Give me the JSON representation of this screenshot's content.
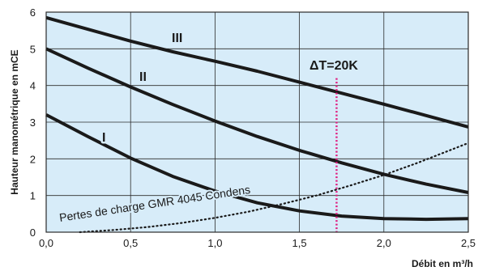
{
  "chart_data": {
    "type": "line",
    "ylabel": "Hauteur manométrique en mCE",
    "xlabel": "Débit en m³/h",
    "xlim": [
      0,
      2.5
    ],
    "ylim": [
      0,
      6
    ],
    "x_ticks": [
      "0,0",
      "0,5",
      "1,0",
      "1,5",
      "2,0",
      "2,5"
    ],
    "y_ticks": [
      "0",
      "1",
      "2",
      "3",
      "4",
      "5",
      "6"
    ],
    "grid": true,
    "background_color": "#d7ecf9",
    "grid_color": "#2b2b2b",
    "series": [
      {
        "name": "I",
        "color": "#1a1a1a",
        "style": "solid",
        "points": [
          [
            0.0,
            3.2
          ],
          [
            0.25,
            2.6
          ],
          [
            0.5,
            2.02
          ],
          [
            0.75,
            1.52
          ],
          [
            1.0,
            1.12
          ],
          [
            1.25,
            0.8
          ],
          [
            1.5,
            0.58
          ],
          [
            1.75,
            0.44
          ],
          [
            2.0,
            0.37
          ],
          [
            2.25,
            0.35
          ],
          [
            2.5,
            0.37
          ]
        ]
      },
      {
        "name": "II",
        "color": "#1a1a1a",
        "style": "solid",
        "points": [
          [
            0.0,
            5.0
          ],
          [
            0.25,
            4.47
          ],
          [
            0.5,
            3.96
          ],
          [
            0.75,
            3.48
          ],
          [
            1.0,
            3.03
          ],
          [
            1.25,
            2.61
          ],
          [
            1.5,
            2.23
          ],
          [
            1.75,
            1.89
          ],
          [
            2.0,
            1.58
          ],
          [
            2.25,
            1.31
          ],
          [
            2.5,
            1.08
          ]
        ]
      },
      {
        "name": "III",
        "color": "#1a1a1a",
        "style": "solid",
        "points": [
          [
            0.0,
            5.85
          ],
          [
            0.25,
            5.53
          ],
          [
            0.5,
            5.21
          ],
          [
            0.75,
            4.92
          ],
          [
            1.0,
            4.66
          ],
          [
            1.25,
            4.39
          ],
          [
            1.5,
            4.09
          ],
          [
            1.75,
            3.79
          ],
          [
            2.0,
            3.49
          ],
          [
            2.25,
            3.18
          ],
          [
            2.5,
            2.87
          ]
        ]
      },
      {
        "name": "Pertes de charge GMR 4045 Condens",
        "color": "#1a1a1a",
        "style": "dotted",
        "points": [
          [
            0.2,
            0.0
          ],
          [
            0.4,
            0.06
          ],
          [
            0.6,
            0.14
          ],
          [
            0.8,
            0.25
          ],
          [
            1.0,
            0.39
          ],
          [
            1.2,
            0.56
          ],
          [
            1.4,
            0.77
          ],
          [
            1.6,
            1.0
          ],
          [
            1.8,
            1.27
          ],
          [
            2.0,
            1.56
          ],
          [
            2.2,
            1.89
          ],
          [
            2.4,
            2.25
          ],
          [
            2.5,
            2.43
          ]
        ]
      }
    ],
    "annotations": [
      {
        "text": "ΔT=20K",
        "type": "vertical_line",
        "x": 1.72,
        "color": "#e0197d"
      }
    ],
    "curve_labels": [
      "I",
      "II",
      "III"
    ],
    "loss_label": "Pertes de charge GMR 4045 Condens"
  }
}
